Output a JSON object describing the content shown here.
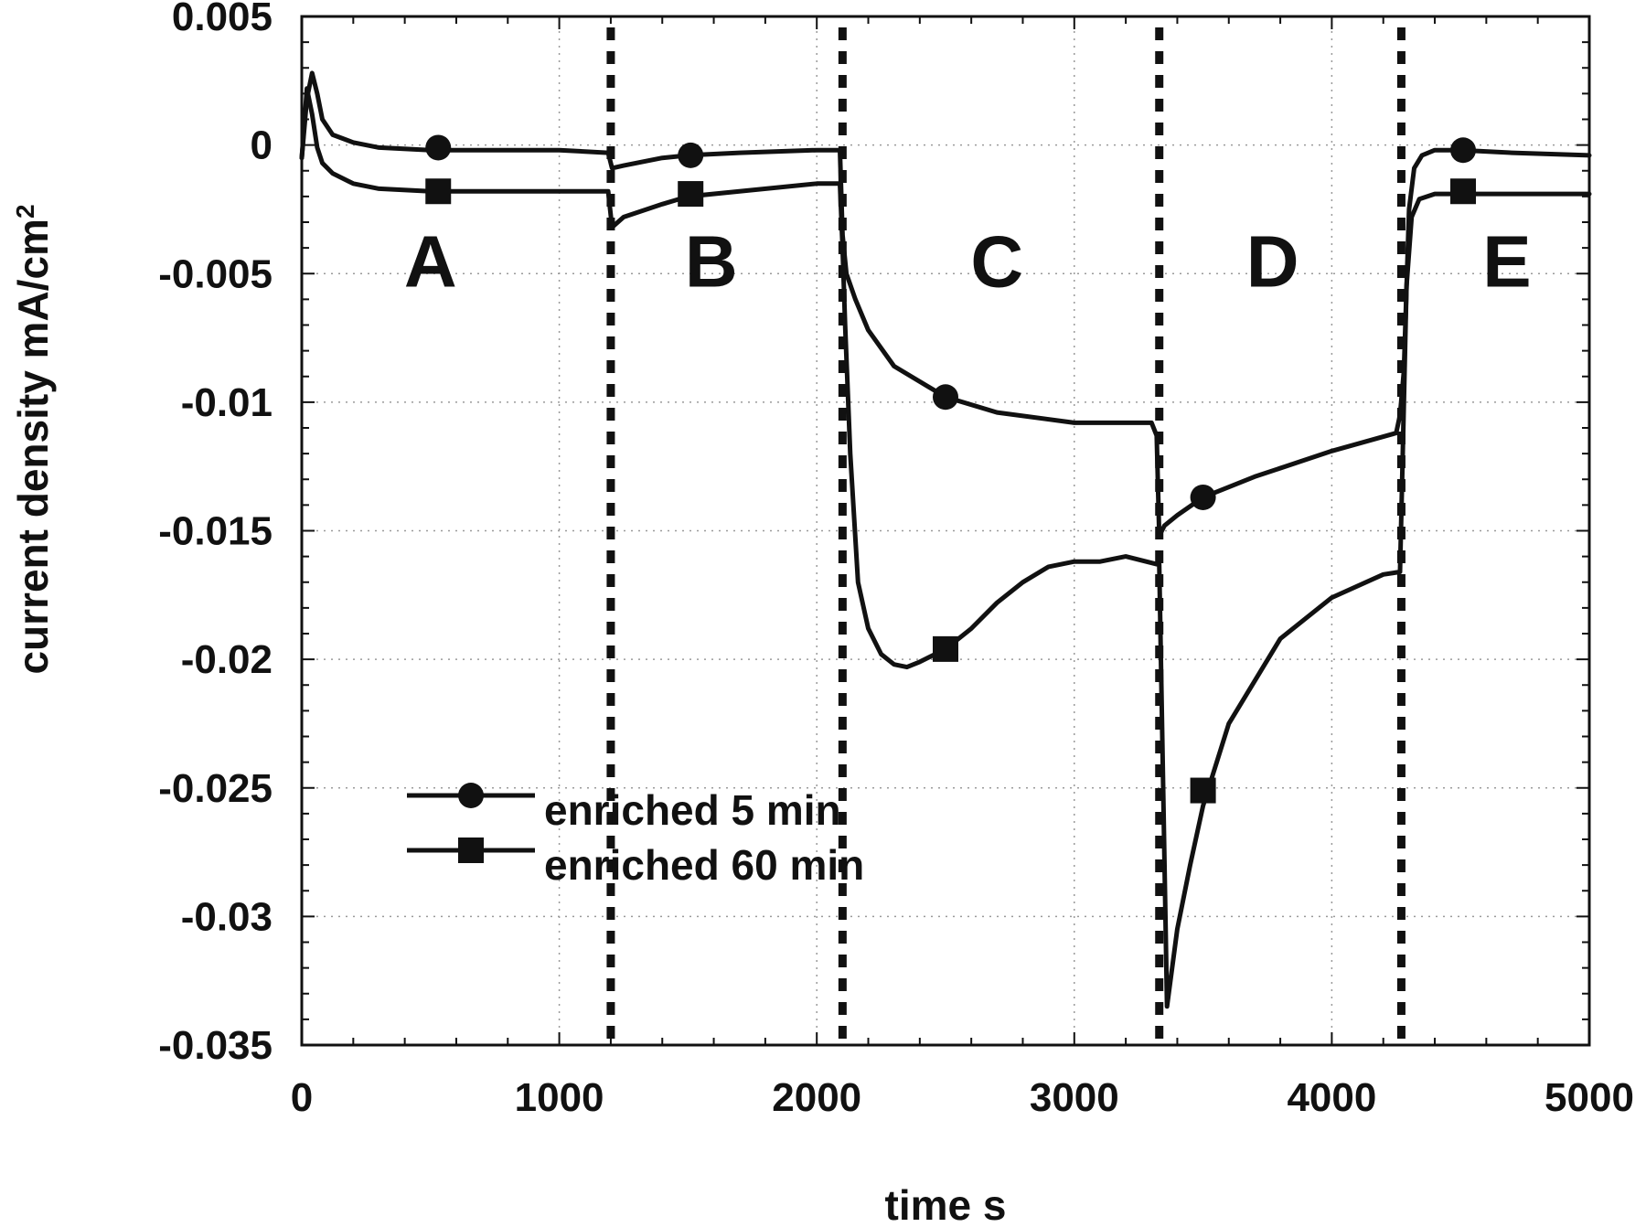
{
  "chart_data": {
    "type": "line",
    "title": "",
    "xlabel": "time s",
    "ylabel": "current density mA/cm",
    "ylabel_superscript": "2",
    "xlim": [
      0,
      5000
    ],
    "ylim": [
      -0.035,
      0.005
    ],
    "x_ticks": [
      0,
      1000,
      2000,
      3000,
      4000,
      5000
    ],
    "x_tick_labels": [
      "0",
      "1000",
      "2000",
      "3000",
      "4000",
      "5000"
    ],
    "y_ticks": [
      0.005,
      0,
      -0.005,
      -0.01,
      -0.015,
      -0.02,
      -0.025,
      -0.03,
      -0.035
    ],
    "y_tick_labels": [
      "0.005",
      "0",
      "-0.005",
      "-0.01",
      "-0.015",
      "-0.02",
      "-0.025",
      "-0.03",
      "-0.035"
    ],
    "grid": true,
    "legend_position": "lower-left",
    "phase_boundaries": [
      1200,
      2100,
      3330,
      4270
    ],
    "regions": [
      {
        "label": "A",
        "x": 500,
        "y": -0.0055
      },
      {
        "label": "B",
        "x": 1590,
        "y": -0.0055
      },
      {
        "label": "C",
        "x": 2700,
        "y": -0.0055
      },
      {
        "label": "D",
        "x": 3770,
        "y": -0.0055
      },
      {
        "label": "E",
        "x": 4680,
        "y": -0.0055
      }
    ],
    "series": [
      {
        "name": "enriched 5 min",
        "marker": "circle",
        "x": [
          0,
          20,
          40,
          60,
          80,
          120,
          200,
          300,
          500,
          800,
          1000,
          1190,
          1205,
          1250,
          1400,
          1500,
          1700,
          2000,
          2090,
          2100,
          2115,
          2150,
          2200,
          2300,
          2500,
          2700,
          3000,
          3300,
          3320,
          3330,
          3350,
          3400,
          3500,
          3700,
          4000,
          4250,
          4265,
          4280,
          4300,
          4320,
          4350,
          4400,
          4500,
          4700,
          5000
        ],
        "y": [
          -0.0005,
          0.0018,
          0.0028,
          0.002,
          0.001,
          0.0004,
          0.0001,
          -0.0001,
          -0.0002,
          -0.0002,
          -0.0002,
          -0.0003,
          -0.0009,
          -0.0008,
          -0.0005,
          -0.0004,
          -0.0003,
          -0.0002,
          -0.0002,
          -0.0035,
          -0.005,
          -0.006,
          -0.0072,
          -0.0086,
          -0.0098,
          -0.0104,
          -0.0108,
          -0.0108,
          -0.0113,
          -0.0152,
          -0.0148,
          -0.0144,
          -0.0137,
          -0.0129,
          -0.0119,
          -0.0112,
          -0.0105,
          -0.0088,
          -0.0025,
          -0.0009,
          -0.0004,
          -0.0002,
          -0.0002,
          -0.0003,
          -0.0004
        ],
        "marker_x": [
          530,
          1510,
          2500,
          3500,
          4510
        ],
        "marker_y": [
          -0.0001,
          -0.0004,
          -0.0098,
          -0.0137,
          -0.0002
        ]
      },
      {
        "name": "enriched 60 min",
        "marker": "square",
        "x": [
          0,
          20,
          40,
          60,
          80,
          120,
          200,
          300,
          500,
          800,
          1000,
          1190,
          1205,
          1250,
          1400,
          1500,
          1700,
          2000,
          2090,
          2100,
          2110,
          2130,
          2160,
          2200,
          2250,
          2300,
          2350,
          2400,
          2500,
          2600,
          2700,
          2800,
          2900,
          3000,
          3100,
          3200,
          3320,
          3330,
          3360,
          3400,
          3450,
          3500,
          3600,
          3800,
          4000,
          4200,
          4265,
          4275,
          4290,
          4310,
          4340,
          4400,
          4500,
          5000
        ],
        "y": [
          -0.0005,
          0.0022,
          0.0012,
          -0.0001,
          -0.0007,
          -0.0011,
          -0.0015,
          -0.0017,
          -0.0018,
          -0.0018,
          -0.0018,
          -0.0018,
          -0.0032,
          -0.0028,
          -0.0023,
          -0.002,
          -0.0018,
          -0.0015,
          -0.0015,
          -0.004,
          -0.007,
          -0.012,
          -0.017,
          -0.0188,
          -0.0198,
          -0.0202,
          -0.0203,
          -0.0201,
          -0.0196,
          -0.0188,
          -0.0178,
          -0.017,
          -0.0164,
          -0.0162,
          -0.0162,
          -0.016,
          -0.0163,
          -0.0163,
          -0.0335,
          -0.0305,
          -0.028,
          -0.0257,
          -0.0225,
          -0.0192,
          -0.0176,
          -0.0167,
          -0.0166,
          -0.0123,
          -0.0055,
          -0.0028,
          -0.0021,
          -0.0019,
          -0.0019,
          -0.0019
        ],
        "marker_x": [
          530,
          1510,
          2500,
          3500,
          4510
        ],
        "marker_y": [
          -0.0018,
          -0.0019,
          -0.0196,
          -0.0251,
          -0.0018
        ]
      }
    ]
  }
}
